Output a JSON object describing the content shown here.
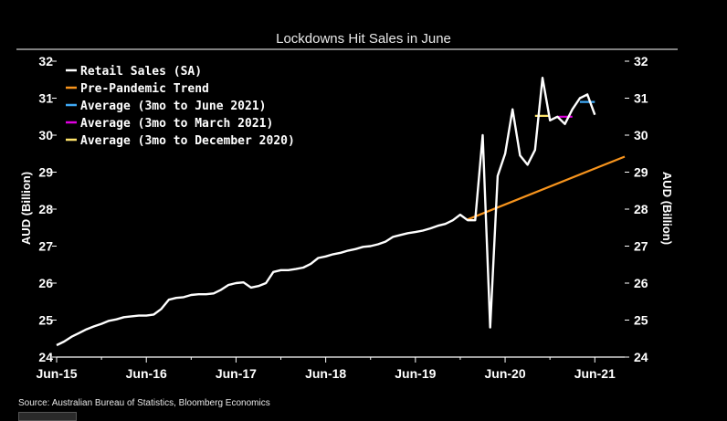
{
  "chart_data": {
    "type": "line",
    "title": "Lockdowns Hit Sales in June",
    "ylabel": "AUD (Billion)",
    "ylabel_right": "AUD (Billion)",
    "ylim": [
      24,
      32
    ],
    "y_ticks": [
      24,
      25,
      26,
      27,
      28,
      29,
      30,
      31,
      32
    ],
    "x_tick_labels": [
      "Jun-15",
      "Jun-16",
      "Jun-17",
      "Jun-18",
      "Jun-19",
      "Jun-20",
      "Jun-21"
    ],
    "legend_position": "top-left",
    "grid": false,
    "series": [
      {
        "name": "Retail Sales (SA)",
        "color": "#ffffff",
        "x": [
          "2015-06",
          "2015-07",
          "2015-08",
          "2015-09",
          "2015-10",
          "2015-11",
          "2015-12",
          "2016-01",
          "2016-02",
          "2016-03",
          "2016-04",
          "2016-05",
          "2016-06",
          "2016-07",
          "2016-08",
          "2016-09",
          "2016-10",
          "2016-11",
          "2016-12",
          "2017-01",
          "2017-02",
          "2017-03",
          "2017-04",
          "2017-05",
          "2017-06",
          "2017-07",
          "2017-08",
          "2017-09",
          "2017-10",
          "2017-11",
          "2017-12",
          "2018-01",
          "2018-02",
          "2018-03",
          "2018-04",
          "2018-05",
          "2018-06",
          "2018-07",
          "2018-08",
          "2018-09",
          "2018-10",
          "2018-11",
          "2018-12",
          "2019-01",
          "2019-02",
          "2019-03",
          "2019-04",
          "2019-05",
          "2019-06",
          "2019-07",
          "2019-08",
          "2019-09",
          "2019-10",
          "2019-11",
          "2019-12",
          "2020-01",
          "2020-02",
          "2020-03",
          "2020-04",
          "2020-05",
          "2020-06",
          "2020-07",
          "2020-08",
          "2020-09",
          "2020-10",
          "2020-11",
          "2020-12",
          "2021-01",
          "2021-02",
          "2021-03",
          "2021-04",
          "2021-05",
          "2021-06"
        ],
        "values": [
          24.32,
          24.42,
          24.55,
          24.65,
          24.75,
          24.83,
          24.9,
          24.98,
          25.02,
          25.08,
          25.1,
          25.12,
          25.12,
          25.15,
          25.3,
          25.55,
          25.6,
          25.62,
          25.68,
          25.7,
          25.7,
          25.72,
          25.82,
          25.95,
          26.0,
          26.02,
          25.88,
          25.92,
          26.0,
          26.3,
          26.35,
          26.35,
          26.38,
          26.42,
          26.52,
          26.68,
          26.72,
          26.78,
          26.82,
          26.88,
          26.92,
          26.98,
          27.0,
          27.05,
          27.12,
          27.25,
          27.3,
          27.35,
          27.38,
          27.42,
          27.48,
          27.55,
          27.6,
          27.7,
          27.85,
          27.7,
          27.7,
          30.0,
          24.8,
          28.9,
          29.5,
          30.7,
          29.45,
          29.2,
          29.6,
          31.55,
          30.4,
          30.5,
          30.3,
          30.7,
          31.0,
          31.1,
          30.55
        ]
      },
      {
        "name": "Pre-Pandemic Trend",
        "color": "#f7941d",
        "x": [
          "2020-01",
          "2021-10"
        ],
        "values": [
          27.72,
          29.42
        ]
      },
      {
        "name": "Average (3mo to June 2021)",
        "color": "#3fa9f5",
        "x": [
          "2021-04",
          "2021-06"
        ],
        "values": [
          30.9,
          30.9
        ]
      },
      {
        "name": "Average (3mo to March 2021)",
        "color": "#e000e0",
        "x": [
          "2021-01",
          "2021-03"
        ],
        "values": [
          30.5,
          30.5
        ]
      },
      {
        "name": "Average (3mo to December 2020)",
        "color": "#fde36b",
        "x": [
          "2020-10",
          "2020-12"
        ],
        "values": [
          30.52,
          30.52
        ]
      }
    ]
  },
  "source": "Source: Australian Bureau of Statistics, Bloomberg Economics"
}
